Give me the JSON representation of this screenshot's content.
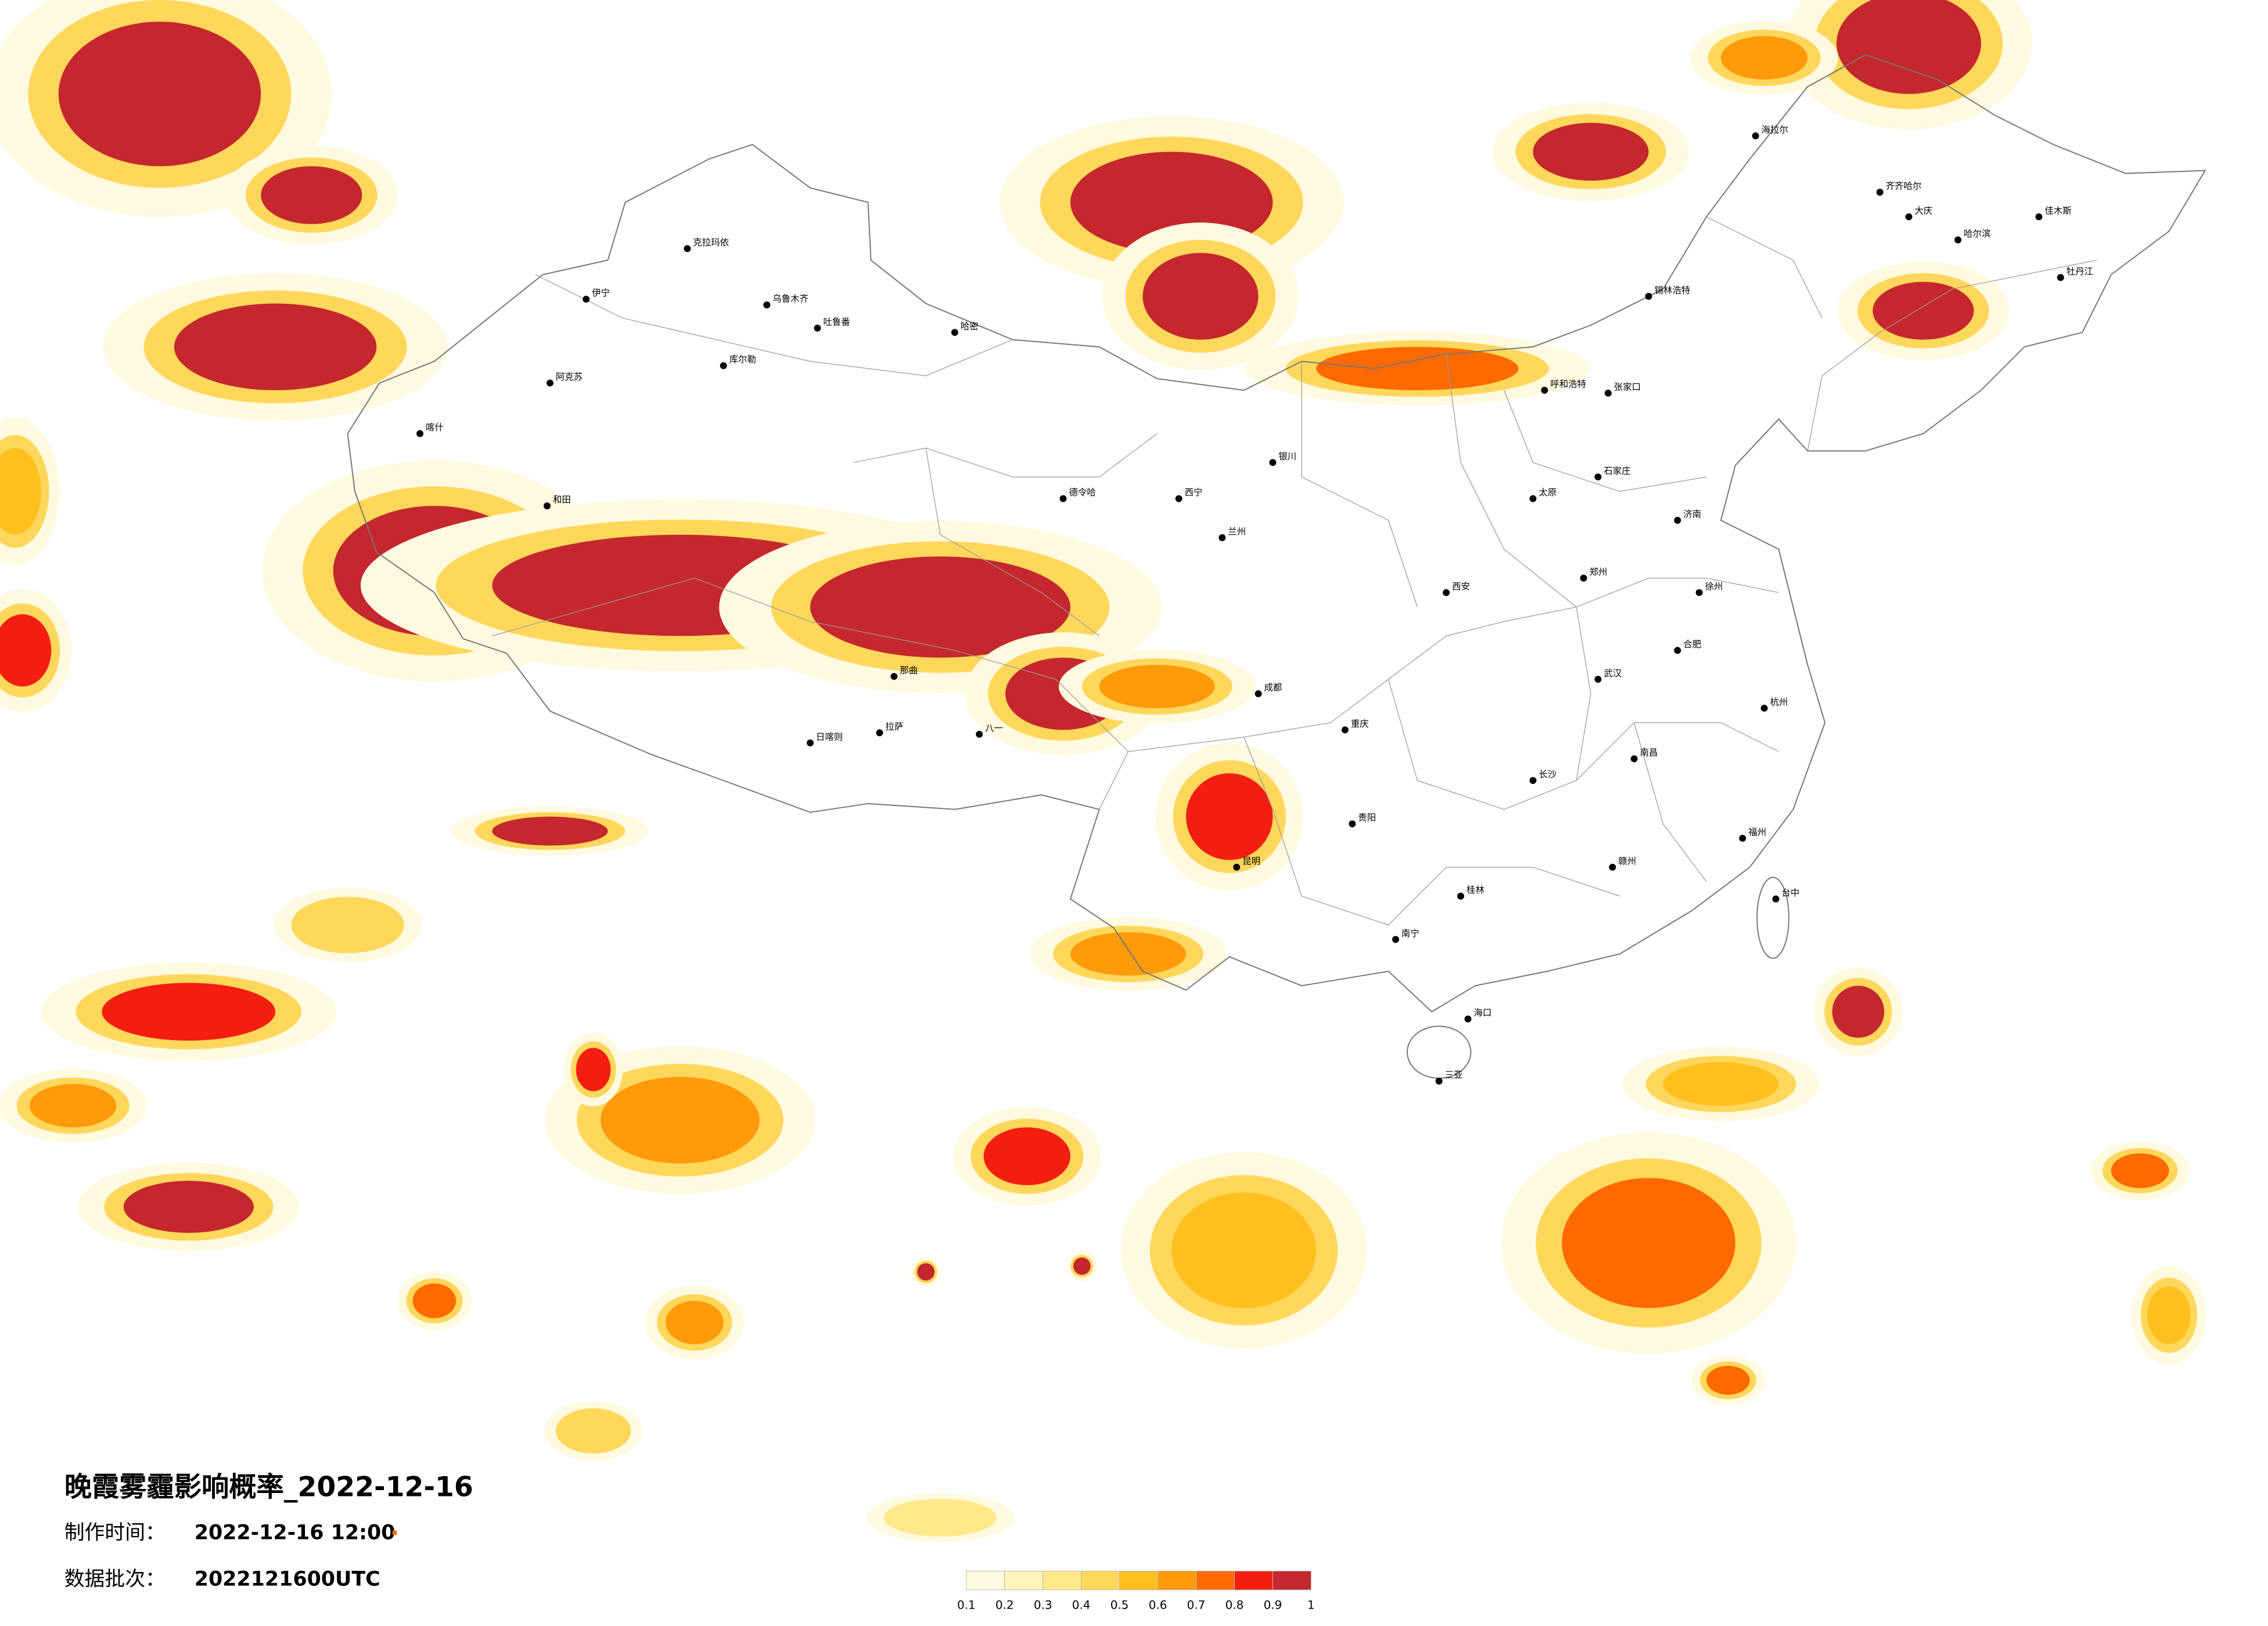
{
  "title": "晚霞雾霾影响概率_2022-12-16",
  "issue_time": {
    "label": "制作时间：",
    "value": "2022-12-16 12:00"
  },
  "batch": {
    "label": "数据批次：",
    "value": "2022121600UTC"
  },
  "legend": {
    "colors": [
      "#fffae0",
      "#fff4b8",
      "#ffe988",
      "#ffd75a",
      "#ffbf1e",
      "#ff9a0a",
      "#ff6a00",
      "#f41e10",
      "#c4272d"
    ],
    "ticks": [
      0.1,
      0.2,
      0.3,
      0.4,
      0.5,
      0.6,
      0.7,
      0.8,
      0.9,
      1
    ]
  },
  "cities": [
    "克拉玛依",
    "伊宁",
    "乌鲁木齐",
    "吐鲁番",
    "哈密",
    "库尔勒",
    "阿克苏",
    "喀什",
    "和田",
    "德令哈",
    "那曲",
    "拉萨",
    "日喀则",
    "八一",
    "海拉尔",
    "齐齐哈尔",
    "大庆",
    "哈尔滨",
    "佳木斯",
    "牡丹江",
    "锡林浩特",
    "呼和浩特",
    "银川",
    "兰州",
    "西宁",
    "张家口",
    "石家庄",
    "太原",
    "济南",
    "郑州",
    "西安",
    "成都",
    "重庆",
    "贵阳",
    "昆明",
    "南宁",
    "长沙",
    "武汉",
    "南昌",
    "合肥",
    "徐州",
    "杭州",
    "福州",
    "台中",
    "海口",
    "三亚",
    "桂林",
    "赣州"
  ]
}
